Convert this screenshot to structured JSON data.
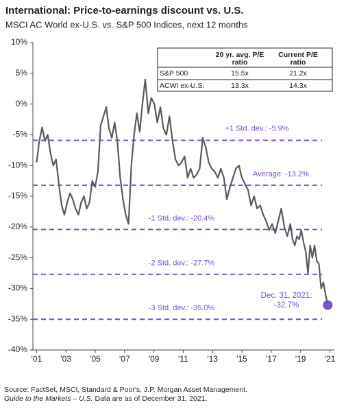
{
  "chart_data": {
    "type": "line",
    "title": "International: Price-to-earnings discount vs. U.S.",
    "subtitle": "MSCI AC World ex-U.S. vs. S&P 500 Indices, next 12 months",
    "xlim": [
      2000.75,
      2021.3
    ],
    "xticks": [
      {
        "value": 2001,
        "label": "'01"
      },
      {
        "value": 2003,
        "label": "'03"
      },
      {
        "value": 2005,
        "label": "'05"
      },
      {
        "value": 2007,
        "label": "'07"
      },
      {
        "value": 2009,
        "label": "'09"
      },
      {
        "value": 2011,
        "label": "'11"
      },
      {
        "value": 2013,
        "label": "'13"
      },
      {
        "value": 2015,
        "label": "'15"
      },
      {
        "value": 2017,
        "label": "'17"
      },
      {
        "value": 2019,
        "label": "'19"
      },
      {
        "value": 2021,
        "label": "'21"
      }
    ],
    "ylim": [
      -40,
      10
    ],
    "yticks": [
      {
        "value": 10,
        "label": "10%"
      },
      {
        "value": 5,
        "label": "5%"
      },
      {
        "value": 0,
        "label": "0%"
      },
      {
        "value": -5,
        "label": "-5%"
      },
      {
        "value": -10,
        "label": "-10%"
      },
      {
        "value": -15,
        "label": "-15%"
      },
      {
        "value": -20,
        "label": "-20%"
      },
      {
        "value": -25,
        "label": "-25%"
      },
      {
        "value": -30,
        "label": "-30%"
      },
      {
        "value": -35,
        "label": "-35%"
      },
      {
        "value": -40,
        "label": "-40%"
      }
    ],
    "x": [
      2001.0,
      2001.19,
      2001.38,
      2001.57,
      2001.76,
      2001.95,
      2002.14,
      2002.33,
      2002.52,
      2002.71,
      2002.9,
      2003.09,
      2003.28,
      2003.47,
      2003.66,
      2003.85,
      2004.04,
      2004.23,
      2004.42,
      2004.61,
      2004.8,
      2004.99,
      2005.18,
      2005.37,
      2005.56,
      2005.75,
      2005.94,
      2006.13,
      2006.32,
      2006.51,
      2006.7,
      2006.89,
      2007.08,
      2007.27,
      2007.46,
      2007.65,
      2007.84,
      2008.03,
      2008.22,
      2008.41,
      2008.62,
      2008.82,
      2009.03,
      2009.23,
      2009.44,
      2009.65,
      2009.85,
      2010.06,
      2010.27,
      2010.47,
      2010.68,
      2010.88,
      2011.09,
      2011.3,
      2011.5,
      2011.71,
      2011.91,
      2012.12,
      2012.33,
      2012.53,
      2012.74,
      2012.94,
      2013.15,
      2013.36,
      2013.56,
      2013.77,
      2013.97,
      2014.18,
      2014.39,
      2014.59,
      2014.8,
      2015.0,
      2015.21,
      2015.42,
      2015.62,
      2015.83,
      2016.03,
      2016.24,
      2016.45,
      2016.65,
      2016.86,
      2017.06,
      2017.27,
      2017.48,
      2017.68,
      2017.89,
      2018.09,
      2018.3,
      2018.45,
      2018.6,
      2018.75,
      2018.9,
      2019.05,
      2019.2,
      2019.35,
      2019.5,
      2019.65,
      2019.8,
      2019.95,
      2020.1,
      2020.25,
      2020.4,
      2020.55,
      2020.7,
      2020.85
    ],
    "series": [
      {
        "color": "#5a5a5a",
        "values": [
          -9.5,
          -6,
          -3.8,
          -6,
          -5,
          -8,
          -10,
          -9,
          -13,
          -16.5,
          -18,
          -16,
          -14.5,
          -15.5,
          -17,
          -18,
          -16,
          -15,
          -17,
          -16,
          -12.5,
          -13.5,
          -11,
          -3.5,
          -2,
          -0.5,
          -4,
          -5.5,
          -3,
          -6,
          -12,
          -15.5,
          -18,
          -19.5,
          -10,
          -5,
          -1.5,
          -4.5,
          0,
          4,
          -1.5,
          1,
          0,
          -3,
          -0.5,
          -4,
          -5,
          -2,
          -6,
          -9,
          -10,
          -9.5,
          -8.5,
          -12,
          -10.5,
          -12,
          -11.5,
          -10.5,
          -5.5,
          -7,
          -9.5,
          -10.5,
          -11,
          -12,
          -10.5,
          -12,
          -15.5,
          -13.5,
          -12,
          -10.5,
          -10,
          -12,
          -13,
          -14,
          -16.5,
          -15,
          -17,
          -16.5,
          -18,
          -19,
          -20.5,
          -19.5,
          -21,
          -19,
          -17,
          -20,
          -21.5,
          -19.5,
          -22,
          -23,
          -21.5,
          -22,
          -20.5,
          -22.5,
          -24,
          -27.5,
          -23,
          -25,
          -23,
          -25.5,
          -26,
          -30,
          -29,
          -31,
          -32.7
        ]
      }
    ],
    "reference_lines": [
      {
        "value": -5.9,
        "label": "+1 Std. dev.: -5.9%"
      },
      {
        "value": -13.2,
        "label": "Average: -13.2%"
      },
      {
        "value": -20.4,
        "label": "-1 Std. dev.: -20.4%"
      },
      {
        "value": -27.7,
        "label": "-2 Std. dev.: -27.7%"
      },
      {
        "value": -35.0,
        "label": "-3 Std. dev.: -35.0%"
      }
    ],
    "reference_color": "#7a4fcf",
    "end_label": [
      "Dec. 31, 2021:",
      "-32.7%"
    ],
    "table": {
      "header": [
        [
          "20 yr. avg. P/E",
          "ratio"
        ],
        [
          "Current P/E",
          "ratio"
        ]
      ],
      "rows": [
        [
          "S&P 500",
          "15.5x",
          "21.2x"
        ],
        [
          "ACWI ex-U.S.",
          "13.3x",
          "14.3x"
        ]
      ]
    },
    "source": "Source: FactSet, MSCI, Standard & Poor's, J.P. Morgan Asset Management.",
    "note_italic": "Guide to the Markets – U.S.",
    "note": "Data are as of December 31, 2021."
  }
}
